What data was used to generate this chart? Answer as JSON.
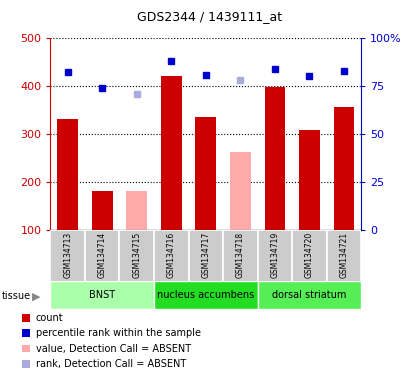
{
  "title": "GDS2344 / 1439111_at",
  "samples": [
    "GSM134713",
    "GSM134714",
    "GSM134715",
    "GSM134716",
    "GSM134717",
    "GSM134718",
    "GSM134719",
    "GSM134720",
    "GSM134721"
  ],
  "count_values": [
    333,
    183,
    null,
    421,
    336,
    null,
    399,
    310,
    358
  ],
  "absent_values": [
    null,
    null,
    183,
    null,
    null,
    264,
    null,
    null,
    null
  ],
  "rank_present": [
    430,
    396,
    null,
    452,
    424,
    null,
    436,
    422,
    432
  ],
  "rank_absent": [
    null,
    null,
    385,
    null,
    null,
    414,
    null,
    null,
    null
  ],
  "tissues": [
    {
      "name": "BNST",
      "start": 0,
      "end": 3,
      "color": "#aaffaa"
    },
    {
      "name": "nucleus accumbens",
      "start": 3,
      "end": 6,
      "color": "#22dd22"
    },
    {
      "name": "dorsal striatum",
      "start": 6,
      "end": 9,
      "color": "#55ee55"
    }
  ],
  "ylim_left": [
    100,
    500
  ],
  "ylim_right": [
    0,
    100
  ],
  "yticks_left": [
    100,
    200,
    300,
    400,
    500
  ],
  "yticks_right": [
    0,
    25,
    50,
    75,
    100
  ],
  "yticklabels_right": [
    "0",
    "25",
    "50",
    "75",
    "100%"
  ],
  "bar_width": 0.6,
  "count_color": "#cc0000",
  "absent_bar_color": "#ffaaaa",
  "rank_present_color": "#0000cc",
  "rank_absent_color": "#aaaadd",
  "left_axis_color": "#cc0000",
  "right_axis_color": "#0000cc",
  "bg_color": "#cccccc",
  "legend": [
    {
      "color": "#cc0000",
      "type": "square",
      "label": "count"
    },
    {
      "color": "#0000cc",
      "type": "square",
      "label": "percentile rank within the sample"
    },
    {
      "color": "#ffaaaa",
      "type": "square",
      "label": "value, Detection Call = ABSENT"
    },
    {
      "color": "#aaaadd",
      "type": "square",
      "label": "rank, Detection Call = ABSENT"
    }
  ]
}
